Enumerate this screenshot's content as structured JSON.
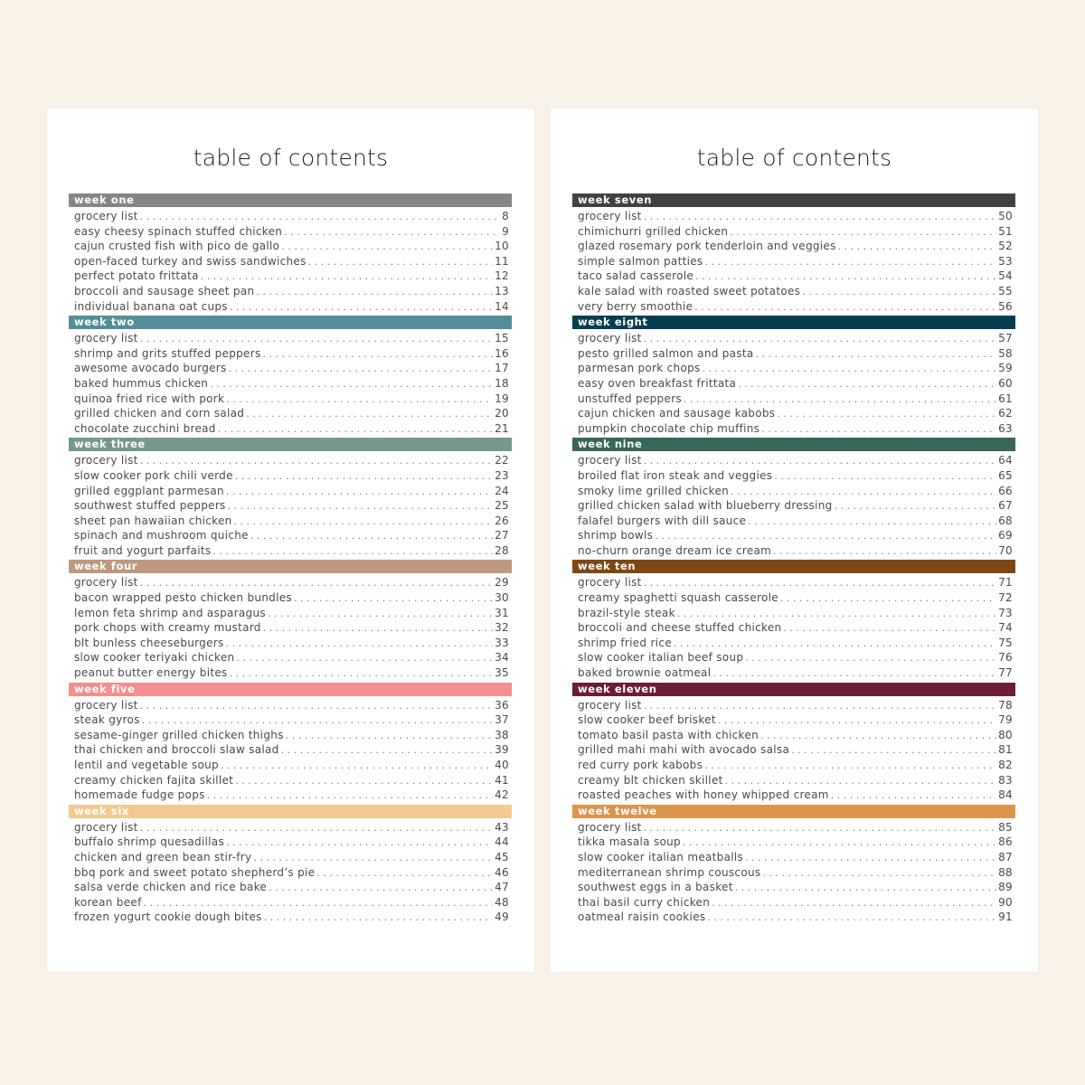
{
  "pages": [
    {
      "title": "table of contents",
      "weeks": [
        {
          "label": "week one",
          "color": "#868686",
          "entries": [
            {
              "name": "grocery list",
              "page": "8"
            },
            {
              "name": "easy cheesy spinach stuffed chicken",
              "page": "9"
            },
            {
              "name": "cajun crusted fish with pico de gallo",
              "page": "10"
            },
            {
              "name": "open-faced turkey and swiss sandwiches",
              "page": "11"
            },
            {
              "name": "perfect potato frittata",
              "page": "12"
            },
            {
              "name": "broccoli and sausage sheet pan",
              "page": "13"
            },
            {
              "name": "individual banana oat cups",
              "page": "14"
            }
          ]
        },
        {
          "label": "week two",
          "color": "#558c9a",
          "entries": [
            {
              "name": "grocery list",
              "page": "15"
            },
            {
              "name": "shrimp and grits stuffed peppers",
              "page": "16"
            },
            {
              "name": "awesome avocado burgers",
              "page": "17"
            },
            {
              "name": "baked hummus chicken",
              "page": "18"
            },
            {
              "name": "quinoa fried rice with pork",
              "page": "19"
            },
            {
              "name": "grilled chicken and corn salad",
              "page": "20"
            },
            {
              "name": "chocolate zucchini bread",
              "page": "21"
            }
          ]
        },
        {
          "label": "week three",
          "color": "#74998b",
          "entries": [
            {
              "name": "grocery list",
              "page": "22"
            },
            {
              "name": "slow cooker pork chili verde",
              "page": "23"
            },
            {
              "name": "grilled eggplant parmesan",
              "page": "24"
            },
            {
              "name": "southwest stuffed peppers",
              "page": "25"
            },
            {
              "name": "sheet pan hawaiian chicken",
              "page": "26"
            },
            {
              "name": "spinach and mushroom quiche",
              "page": "27"
            },
            {
              "name": "fruit and yogurt parfaits",
              "page": "28"
            }
          ]
        },
        {
          "label": "week four",
          "color": "#bf997d",
          "entries": [
            {
              "name": "grocery list",
              "page": "29"
            },
            {
              "name": "bacon wrapped pesto chicken bundles",
              "page": "30"
            },
            {
              "name": "lemon feta shrimp and asparagus",
              "page": "31"
            },
            {
              "name": "pork chops with creamy mustard",
              "page": "32"
            },
            {
              "name": "blt bunless cheeseburgers",
              "page": "33"
            },
            {
              "name": "slow cooker teriyaki chicken",
              "page": "34"
            },
            {
              "name": "peanut butter energy bites",
              "page": "35"
            }
          ]
        },
        {
          "label": "week five",
          "color": "#f48e8f",
          "entries": [
            {
              "name": "grocery list",
              "page": "36"
            },
            {
              "name": "steak gyros",
              "page": "37"
            },
            {
              "name": "sesame-ginger grilled chicken thighs",
              "page": "38"
            },
            {
              "name": "thai chicken and broccoli slaw salad",
              "page": "39"
            },
            {
              "name": "lentil and vegetable soup",
              "page": "40"
            },
            {
              "name": "creamy chicken fajita skillet",
              "page": "41"
            },
            {
              "name": "homemade fudge pops",
              "page": "42"
            }
          ]
        },
        {
          "label": "week six",
          "color": "#f2c98f",
          "entries": [
            {
              "name": "grocery list",
              "page": "43"
            },
            {
              "name": "buffalo shrimp quesadillas",
              "page": "44"
            },
            {
              "name": "chicken and green bean stir-fry",
              "page": "45"
            },
            {
              "name": "bbq pork and sweet potato shepherd’s pie",
              "page": "46"
            },
            {
              "name": "salsa verde chicken and rice bake",
              "page": "47"
            },
            {
              "name": "korean beef",
              "page": "48"
            },
            {
              "name": "frozen yogurt cookie dough bites",
              "page": "49"
            }
          ]
        }
      ]
    },
    {
      "title": "table of contents",
      "weeks": [
        {
          "label": "week seven",
          "color": "#414141",
          "entries": [
            {
              "name": "grocery list",
              "page": "50"
            },
            {
              "name": "chimichurri grilled chicken",
              "page": "51"
            },
            {
              "name": "glazed rosemary pork tenderloin and veggies",
              "page": "52"
            },
            {
              "name": "simple salmon patties",
              "page": "53"
            },
            {
              "name": "taco salad casserole",
              "page": "54"
            },
            {
              "name": "kale salad with roasted sweet potatoes",
              "page": "55"
            },
            {
              "name": "very berry smoothie",
              "page": "56"
            }
          ]
        },
        {
          "label": "week eight",
          "color": "#063e50",
          "entries": [
            {
              "name": "grocery list",
              "page": "57"
            },
            {
              "name": "pesto grilled salmon and pasta",
              "page": "58"
            },
            {
              "name": "parmesan pork chops",
              "page": "59"
            },
            {
              "name": "easy oven breakfast frittata",
              "page": "60"
            },
            {
              "name": "unstuffed peppers",
              "page": "61"
            },
            {
              "name": "cajun chicken and sausage kabobs",
              "page": "62"
            },
            {
              "name": "pumpkin chocolate chip muffins",
              "page": "63"
            }
          ]
        },
        {
          "label": "week nine",
          "color": "#36675a",
          "entries": [
            {
              "name": "grocery list",
              "page": "64"
            },
            {
              "name": "broiled flat iron steak and veggies",
              "page": "65"
            },
            {
              "name": "smoky lime grilled chicken",
              "page": "66"
            },
            {
              "name": "grilled chicken salad with blueberry dressing",
              "page": "67"
            },
            {
              "name": "falafel burgers with dill sauce",
              "page": "68"
            },
            {
              "name": "shrimp bowls",
              "page": "69"
            },
            {
              "name": "no-churn orange dream ice cream",
              "page": "70"
            }
          ]
        },
        {
          "label": "week ten",
          "color": "#7e4816",
          "entries": [
            {
              "name": "grocery list",
              "page": "71"
            },
            {
              "name": "creamy spaghetti squash casserole",
              "page": "72"
            },
            {
              "name": "brazil-style steak",
              "page": "73"
            },
            {
              "name": "broccoli and cheese stuffed chicken",
              "page": "74"
            },
            {
              "name": "shrimp fried rice",
              "page": "75"
            },
            {
              "name": "slow cooker italian beef soup",
              "page": "76"
            },
            {
              "name": "baked brownie oatmeal",
              "page": "77"
            }
          ]
        },
        {
          "label": "week eleven",
          "color": "#6b1d3a",
          "entries": [
            {
              "name": "grocery list",
              "page": "78"
            },
            {
              "name": "slow cooker beef brisket",
              "page": "79"
            },
            {
              "name": "tomato basil pasta with chicken",
              "page": "80"
            },
            {
              "name": "grilled mahi mahi with avocado salsa",
              "page": "81"
            },
            {
              "name": "red curry pork kabobs",
              "page": "82"
            },
            {
              "name": "creamy blt chicken skillet",
              "page": "83"
            },
            {
              "name": "roasted peaches with honey whipped cream",
              "page": "84"
            }
          ]
        },
        {
          "label": "week twelve",
          "color": "#dc954c",
          "entries": [
            {
              "name": "grocery list",
              "page": "85"
            },
            {
              "name": "tikka masala soup",
              "page": "86"
            },
            {
              "name": "slow cooker italian meatballs",
              "page": "87"
            },
            {
              "name": "mediterranean shrimp couscous",
              "page": "88"
            },
            {
              "name": "southwest eggs in a basket",
              "page": "89"
            },
            {
              "name": "thai basil curry chicken",
              "page": "90"
            },
            {
              "name": "oatmeal raisin cookies",
              "page": "91"
            }
          ]
        }
      ]
    }
  ],
  "colors": {
    "background": "#f7f1e8",
    "page": "#ffffff",
    "title_text": "#222222",
    "entry_text": "#4a4a4a"
  }
}
